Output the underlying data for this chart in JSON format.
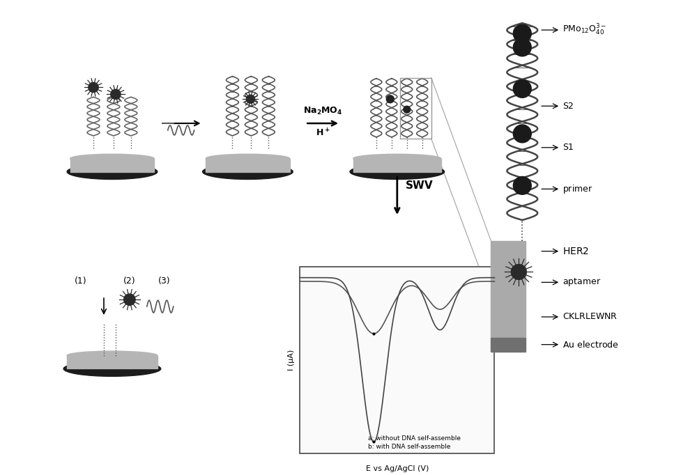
{
  "bg_color": "#ffffff",
  "swv_legend": [
    "a: without DNA self-assemble",
    "b: with DNA self-assemble"
  ],
  "bottom_labels": [
    "(1)",
    "(2)",
    "(3)"
  ],
  "axis_xlabel": "E vs Ag/AgCl (V)",
  "axis_ylabel": "I (μA)",
  "swv_label": "SWV",
  "arrow_label1": "Na₂MO₄",
  "arrow_label2": "H⁺",
  "right_labels": [
    "PMo_{12}O_{40}^{3-}",
    "S2",
    "S1",
    "primer",
    "HER2",
    "aptamer",
    "CKLRLEWNR",
    "Au electrode"
  ],
  "electrode_top_color": "#b0b0b0",
  "electrode_dark_color": "#2a2a2a",
  "electrode_mid_color": "#888888"
}
